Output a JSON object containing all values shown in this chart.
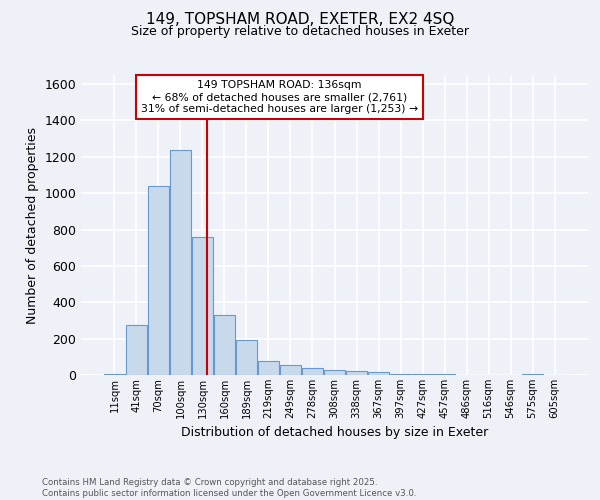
{
  "title1": "149, TOPSHAM ROAD, EXETER, EX2 4SQ",
  "title2": "Size of property relative to detached houses in Exeter",
  "xlabel": "Distribution of detached houses by size in Exeter",
  "ylabel": "Number of detached properties",
  "bar_labels": [
    "11sqm",
    "41sqm",
    "70sqm",
    "100sqm",
    "130sqm",
    "160sqm",
    "189sqm",
    "219sqm",
    "249sqm",
    "278sqm",
    "308sqm",
    "338sqm",
    "367sqm",
    "397sqm",
    "427sqm",
    "457sqm",
    "486sqm",
    "516sqm",
    "546sqm",
    "575sqm",
    "605sqm"
  ],
  "bar_values": [
    5,
    275,
    1040,
    1240,
    760,
    330,
    190,
    75,
    55,
    40,
    30,
    20,
    15,
    8,
    5,
    3,
    2,
    0,
    0,
    5,
    0
  ],
  "bar_color": "#c9d9ec",
  "bar_edge_color": "#6699cc",
  "ylim": [
    0,
    1650
  ],
  "yticks": [
    0,
    200,
    400,
    600,
    800,
    1000,
    1200,
    1400,
    1600
  ],
  "red_line_x": 4.2,
  "annotation_title": "149 TOPSHAM ROAD: 136sqm",
  "annotation_line1": "← 68% of detached houses are smaller (2,761)",
  "annotation_line2": "31% of semi-detached houses are larger (1,253) →",
  "ann_box_edgecolor": "#cc0000",
  "red_line_color": "#cc0000",
  "footer1": "Contains HM Land Registry data © Crown copyright and database right 2025.",
  "footer2": "Contains public sector information licensed under the Open Government Licence v3.0.",
  "bg_color": "#eef2f8",
  "grid_color": "#ffffff"
}
